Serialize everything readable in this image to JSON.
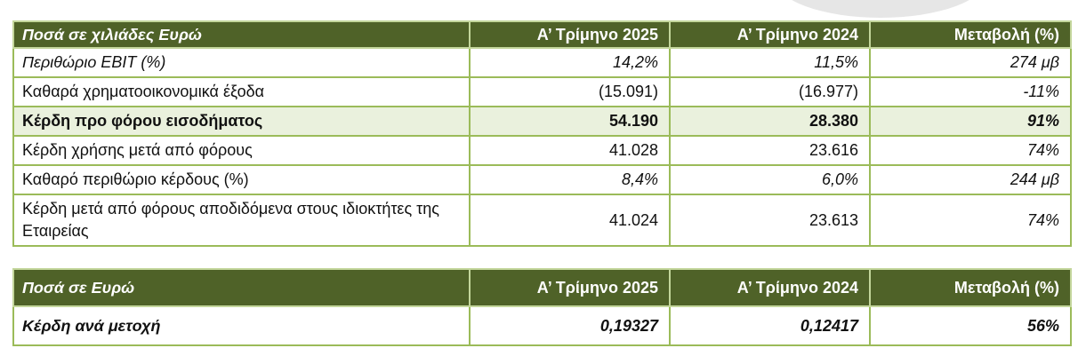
{
  "table1": {
    "headers": [
      "Ποσά σε χιλιάδες Ευρώ",
      "Α’ Τρίμηνο 2025",
      "Α’ Τρίμηνο 2024",
      "Μεταβολή (%)"
    ],
    "rows": [
      {
        "label": "Περιθώριο EBIT (%)",
        "q2025": "14,2%",
        "q2024": "11,5%",
        "change": "274 μβ"
      },
      {
        "label": "Καθαρά χρηματοοικονομικά έξοδα",
        "q2025": "(15.091)",
        "q2024": "(16.977)",
        "change": "-11%"
      },
      {
        "label": "Κέρδη προ φόρου εισοδήματος",
        "q2025": "54.190",
        "q2024": "28.380",
        "change": "91%"
      },
      {
        "label": "Κέρδη χρήσης μετά από φόρους",
        "q2025": "41.028",
        "q2024": "23.616",
        "change": "74%"
      },
      {
        "label": "Καθαρό περιθώριο κέρδους (%)",
        "q2025": "8,4%",
        "q2024": "6,0%",
        "change": "244 μβ"
      },
      {
        "label": "Κέρδη μετά από φόρους αποδιδόμενα στους ιδιοκτήτες της Εταιρείας",
        "q2025": "41.024",
        "q2024": "23.613",
        "change": "74%"
      }
    ]
  },
  "table2": {
    "headers": [
      "Ποσά σε Ευρώ",
      "Α’ Τρίμηνο 2025",
      "Α’ Τρίμηνο 2024",
      "Μεταβολή (%)"
    ],
    "rows": [
      {
        "label": "Κέρδη ανά μετοχή",
        "q2025": "0,19327",
        "q2024": "0,12417",
        "change": "56%"
      }
    ]
  },
  "colors": {
    "header_bg": "#4f6228",
    "border": "#9bbb59",
    "highlight_row": "#eaf1dd"
  }
}
